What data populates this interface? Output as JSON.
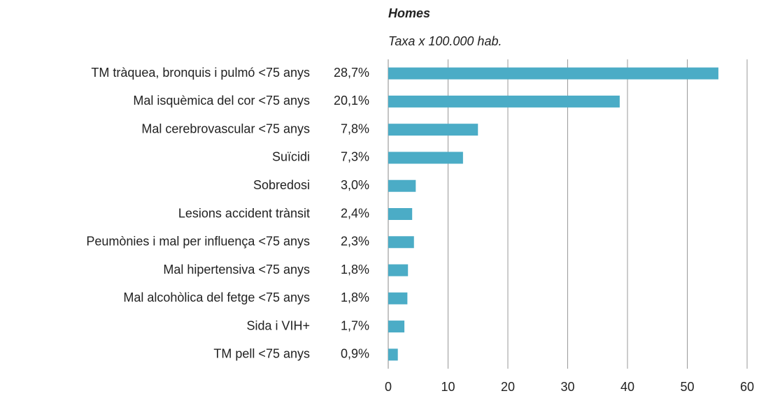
{
  "chart_data": {
    "type": "barh",
    "title": "Homes",
    "subtitle": "Taxa x 100.000 hab.",
    "categories": [
      "TM tràquea, bronquis i pulmó <75 anys",
      "Mal isquèmica del cor <75 anys",
      "Mal cerebrovascular <75 anys",
      "Suïcidi",
      "Sobredosi",
      "Lesions accident trànsit",
      "Peumònies i mal per influença <75 anys",
      "Mal hipertensiva <75 anys",
      "Mal alcohòlica del fetge <75 anys",
      "Sida i VIH+",
      "TM pell <75 anys"
    ],
    "shares": [
      "28,7%",
      "20,1%",
      "7,8%",
      "7,3%",
      "3,0%",
      "2,4%",
      "2,3%",
      "1,8%",
      "1,8%",
      "1,7%",
      "0,9%"
    ],
    "values": [
      55.2,
      38.7,
      15.0,
      12.5,
      4.6,
      4.0,
      4.3,
      3.3,
      3.2,
      2.7,
      1.6
    ],
    "color": "#4bacc6",
    "xlim": [
      0,
      60
    ],
    "xticks": [
      0,
      10,
      20,
      30,
      40,
      50,
      60
    ],
    "grid": true
  }
}
